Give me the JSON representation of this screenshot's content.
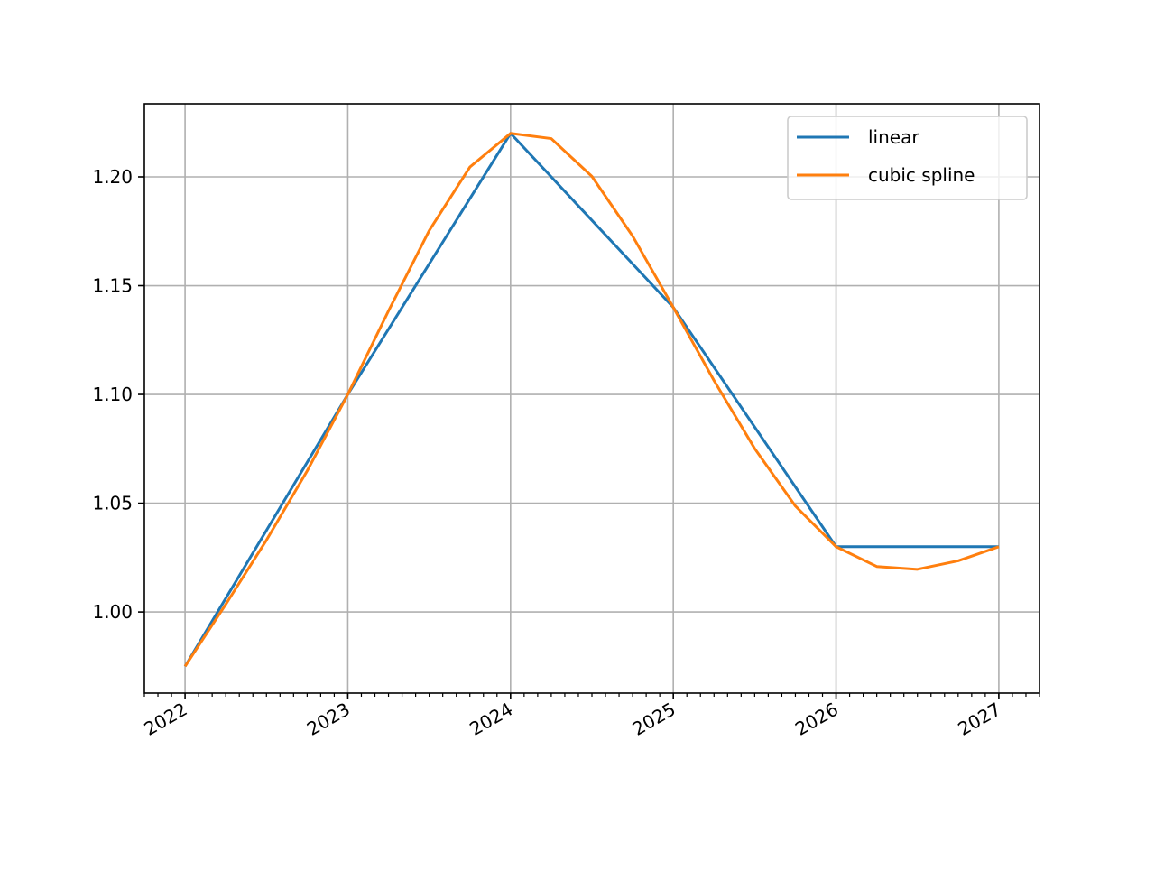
{
  "chart_data": {
    "type": "line",
    "xlim": [
      2021.75,
      2027.25
    ],
    "ylim": [
      0.9627,
      1.2336
    ],
    "xticks": [
      2022,
      2023,
      2024,
      2025,
      2026,
      2027
    ],
    "yticks": [
      {
        "value": 1,
        "label": "1.00"
      },
      1.05,
      {
        "value": 1.1,
        "label": "1.10"
      },
      1.15,
      {
        "value": 1.2,
        "label": "1.20"
      }
    ],
    "grid": true,
    "legend": "upper right",
    "series": [
      {
        "name": "linear",
        "color": "#1f77b4",
        "x": [
          2022,
          2023,
          2024,
          2025,
          2026,
          2027
        ],
        "values": [
          0.975,
          1.1,
          1.22,
          1.14,
          1.03,
          1.03
        ]
      },
      {
        "name": "cubic spline",
        "color": "#ff7f0e",
        "x": [
          2022,
          2022.25,
          2022.5,
          2022.75,
          2023,
          2023.25,
          2023.5,
          2023.75,
          2024,
          2024.25,
          2024.5,
          2024.75,
          2025,
          2025.25,
          2025.5,
          2025.75,
          2026,
          2026.25,
          2026.5,
          2026.75,
          2027
        ],
        "values": [
          0.975,
          1.0035,
          1.033,
          1.0648,
          1.1,
          1.1384,
          1.1753,
          1.2045,
          1.22,
          1.2176,
          1.2002,
          1.1728,
          1.14,
          1.1064,
          1.0751,
          1.0487,
          1.03,
          1.0209,
          1.0196,
          1.0235,
          1.03
        ]
      }
    ]
  }
}
